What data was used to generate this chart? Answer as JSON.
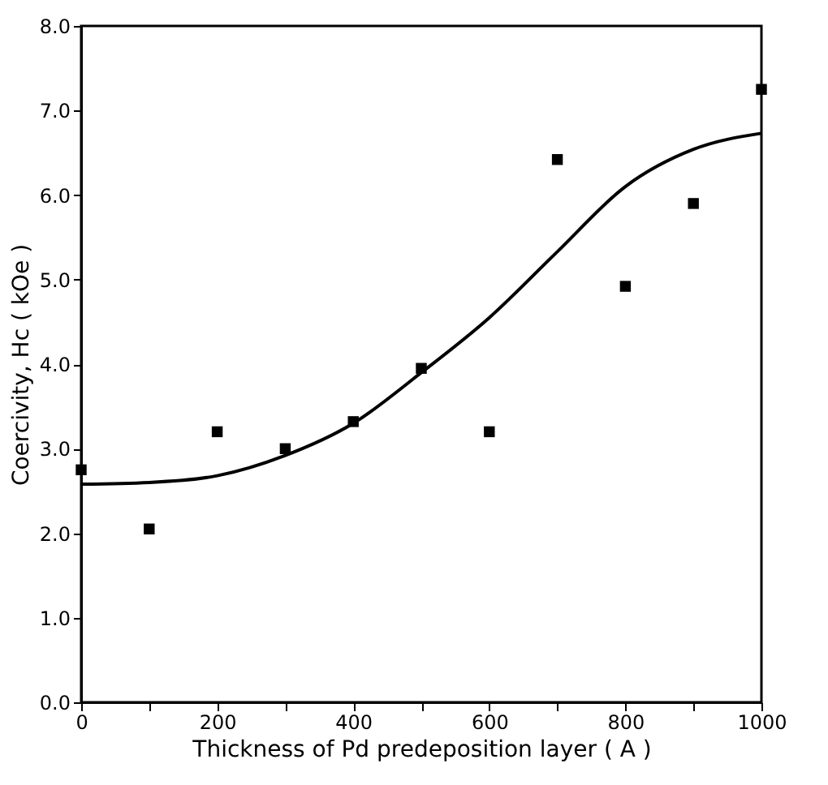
{
  "chart_data": {
    "type": "scatter",
    "xlabel": "Thickness of Pd predeposition layer ( A )",
    "ylabel": "Coercivity, Hc ( kOe )",
    "xlim": [
      0,
      1000
    ],
    "ylim": [
      0,
      8
    ],
    "xticks": [
      0,
      {
        "value": 100,
        "label": null
      },
      200,
      {
        "value": 300,
        "label": null
      },
      400,
      {
        "value": 500,
        "label": null
      },
      600,
      {
        "value": 700,
        "label": null
      },
      800,
      {
        "value": 900,
        "label": null
      },
      1000
    ],
    "yticks": [
      {
        "value": 0,
        "label": "0.0"
      },
      {
        "value": 1,
        "label": "1.0"
      },
      {
        "value": 2,
        "label": "2.0"
      },
      {
        "value": 3,
        "label": "3.0"
      },
      {
        "value": 4,
        "label": "4.0"
      },
      {
        "value": 5,
        "label": "5.0"
      },
      {
        "value": 6,
        "label": "6.0"
      },
      {
        "value": 7,
        "label": "7.0"
      },
      {
        "value": 8,
        "label": "8.0"
      }
    ],
    "grid": false,
    "series": [
      {
        "marker": "square",
        "color": "#000000",
        "x": [
          0,
          100,
          200,
          300,
          400,
          500,
          600,
          700,
          800,
          900,
          1000
        ],
        "values": [
          2.75,
          2.05,
          3.2,
          3.0,
          3.32,
          3.95,
          3.2,
          6.42,
          4.92,
          5.9,
          7.25
        ]
      },
      {
        "type": "line",
        "marker": "none",
        "line_style": "solid",
        "color": "#000000",
        "x": [
          0,
          100,
          200,
          300,
          400,
          500,
          600,
          700,
          800,
          900,
          1000
        ],
        "values": [
          2.58,
          2.6,
          2.68,
          2.92,
          3.3,
          3.9,
          4.55,
          5.33,
          6.1,
          6.54,
          6.73
        ]
      }
    ]
  }
}
